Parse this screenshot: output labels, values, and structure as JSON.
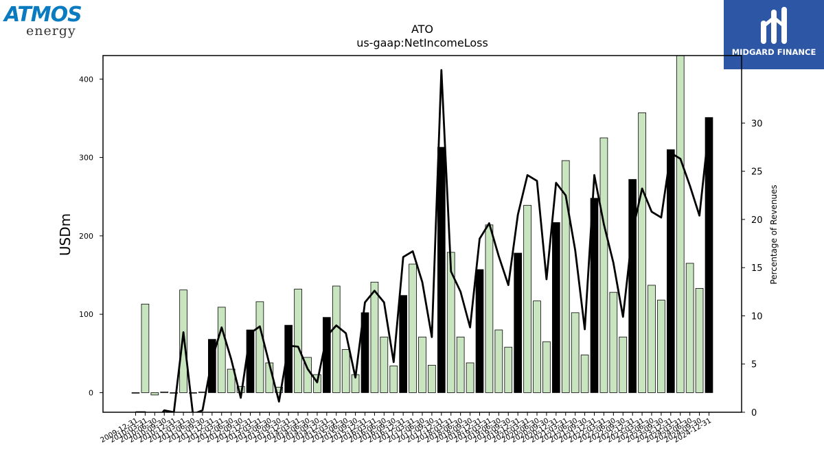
{
  "logos": {
    "left_line1": "ATMOS",
    "left_line2": "energy",
    "left_mark": "·",
    "right_text": "MIDGARD FINANCE"
  },
  "colors": {
    "bar_fy": "#000000",
    "bar_quarter": "#c9e5c0",
    "line": "#000000",
    "brand_atmos": "#0a7bc1",
    "brand_midgard": "#2d57a5"
  },
  "chart_data": {
    "type": "bar",
    "title": "ATO",
    "subtitle": "us-gaap:NetIncomeLoss",
    "ylabel": "USDm",
    "y2label": "Percentage of Revenues",
    "ylim": [
      -25,
      430
    ],
    "y2lim": [
      0,
      37
    ],
    "yticks": [
      0,
      100,
      200,
      300,
      400
    ],
    "y2ticks": [
      0,
      5,
      10,
      15,
      20,
      25,
      30
    ],
    "categories": [
      "2009-12-31",
      "2010-03-31",
      "2010-06-30",
      "2010-09-30",
      "2010-12-31",
      "2011-03-31",
      "2011-06-30",
      "2011-09-30",
      "2011-12-31",
      "2012-03-31",
      "2012-06-30",
      "2012-09-30",
      "2012-12-31",
      "2013-03-31",
      "2013-06-30",
      "2013-09-30",
      "2013-12-31",
      "2014-03-31",
      "2014-06-30",
      "2014-09-30",
      "2014-12-31",
      "2015-03-31",
      "2015-06-30",
      "2015-09-30",
      "2015-12-31",
      "2016-03-31",
      "2016-06-30",
      "2016-09-30",
      "2016-12-31",
      "2017-03-31",
      "2017-06-30",
      "2017-09-30",
      "2017-12-31",
      "2018-03-31",
      "2018-06-30",
      "2018-09-30",
      "2018-12-31",
      "2019-03-31",
      "2019-06-30",
      "2019-09-30",
      "2019-12-31",
      "2020-03-31",
      "2020-06-30",
      "2020-09-30",
      "2020-12-31",
      "2021-03-31",
      "2021-06-30",
      "2021-09-30",
      "2021-12-31",
      "2022-03-31",
      "2022-06-30",
      "2022-09-30",
      "2022-12-31",
      "2023-03-31",
      "2023-06-30",
      "2023-09-30",
      "2023-12-31",
      "2024-03-31",
      "2024-06-30",
      "2024-09-30",
      "2024-12-31"
    ],
    "series": [
      {
        "kind": "bars",
        "values": [
          0,
          113,
          -3,
          1,
          0,
          131,
          0,
          1,
          68,
          109,
          30,
          8,
          80,
          116,
          38,
          7,
          86,
          132,
          45,
          23,
          96,
          136,
          55,
          23,
          102,
          141,
          71,
          34,
          124,
          164,
          71,
          35,
          313,
          179,
          71,
          38,
          157,
          214,
          80,
          58,
          178,
          239,
          117,
          65,
          217,
          296,
          102,
          48,
          248,
          325,
          128,
          71,
          272,
          357,
          137,
          118,
          310,
          430,
          165,
          133,
          351
        ],
        "fiscal_year_end": [
          false,
          false,
          false,
          false,
          false,
          false,
          false,
          false,
          true,
          false,
          false,
          false,
          true,
          false,
          false,
          false,
          true,
          false,
          false,
          false,
          true,
          false,
          false,
          false,
          true,
          false,
          false,
          false,
          true,
          false,
          false,
          false,
          true,
          false,
          false,
          false,
          true,
          false,
          false,
          false,
          true,
          false,
          false,
          false,
          true,
          false,
          false,
          false,
          true,
          false,
          false,
          false,
          true,
          false,
          false,
          false,
          true,
          false,
          false,
          false,
          true
        ]
      },
      {
        "kind": "line",
        "axis": "right",
        "values": [
          0,
          0,
          -1,
          0.2,
          0,
          8.3,
          -0.2,
          0.2,
          5.5,
          8.8,
          5.5,
          1.5,
          8.2,
          8.9,
          5.0,
          1.1,
          6.9,
          6.8,
          4.5,
          3.1,
          7.9,
          9.0,
          8.2,
          3.6,
          11.4,
          12.6,
          11.4,
          5.2,
          16.1,
          16.7,
          13.5,
          7.8,
          35.5,
          14.6,
          12.5,
          8.8,
          18.0,
          19.6,
          16.2,
          13.2,
          20.5,
          24.6,
          24.0,
          13.8,
          23.8,
          22.5,
          16.8,
          8.6,
          24.6,
          19.5,
          15.5,
          9.9,
          18.8,
          23.2,
          20.8,
          20.2,
          26.9,
          26.3,
          23.5,
          20.4,
          29.6
        ]
      }
    ]
  }
}
